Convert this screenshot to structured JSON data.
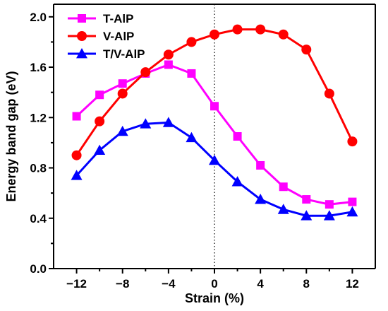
{
  "chart_data": {
    "type": "line",
    "xlabel": "Strain (%)",
    "ylabel": "Energy band gap (eV)",
    "xlim": [
      -14,
      14
    ],
    "ylim": [
      0.0,
      2.1
    ],
    "xticks": [
      -12,
      -8,
      -4,
      0,
      4,
      8,
      12
    ],
    "xtick_labels": [
      "-12",
      "-8",
      "-4",
      "0",
      "4",
      "8",
      "12"
    ],
    "yticks": [
      0.0,
      0.4,
      0.8,
      1.2,
      1.6,
      2.0
    ],
    "ytick_labels": [
      "0.0",
      "0.4",
      "0.8",
      "1.2",
      "1.6",
      "2.0"
    ],
    "reference_line": {
      "x": 0,
      "style": "dotted"
    },
    "legend_position": "top-left",
    "x": [
      -12,
      -10,
      -8,
      -6,
      -4,
      -2,
      0,
      2,
      4,
      6,
      8,
      10,
      12
    ],
    "series": [
      {
        "name": "T-AlP",
        "color": "#ff00ff",
        "marker": "square",
        "values": [
          1.21,
          1.38,
          1.47,
          1.55,
          1.62,
          1.55,
          1.29,
          1.05,
          0.82,
          0.65,
          0.55,
          0.51,
          0.53
        ]
      },
      {
        "name": "V-AlP",
        "color": "#ff0000",
        "marker": "circle",
        "values": [
          0.9,
          1.17,
          1.39,
          1.56,
          1.7,
          1.8,
          1.86,
          1.9,
          1.9,
          1.86,
          1.74,
          1.39,
          1.01
        ]
      },
      {
        "name": "T/V-AlP",
        "color": "#0000ff",
        "marker": "triangle",
        "values": [
          0.74,
          0.94,
          1.09,
          1.15,
          1.16,
          1.04,
          0.86,
          0.69,
          0.55,
          0.47,
          0.42,
          0.42,
          0.45
        ]
      }
    ]
  }
}
